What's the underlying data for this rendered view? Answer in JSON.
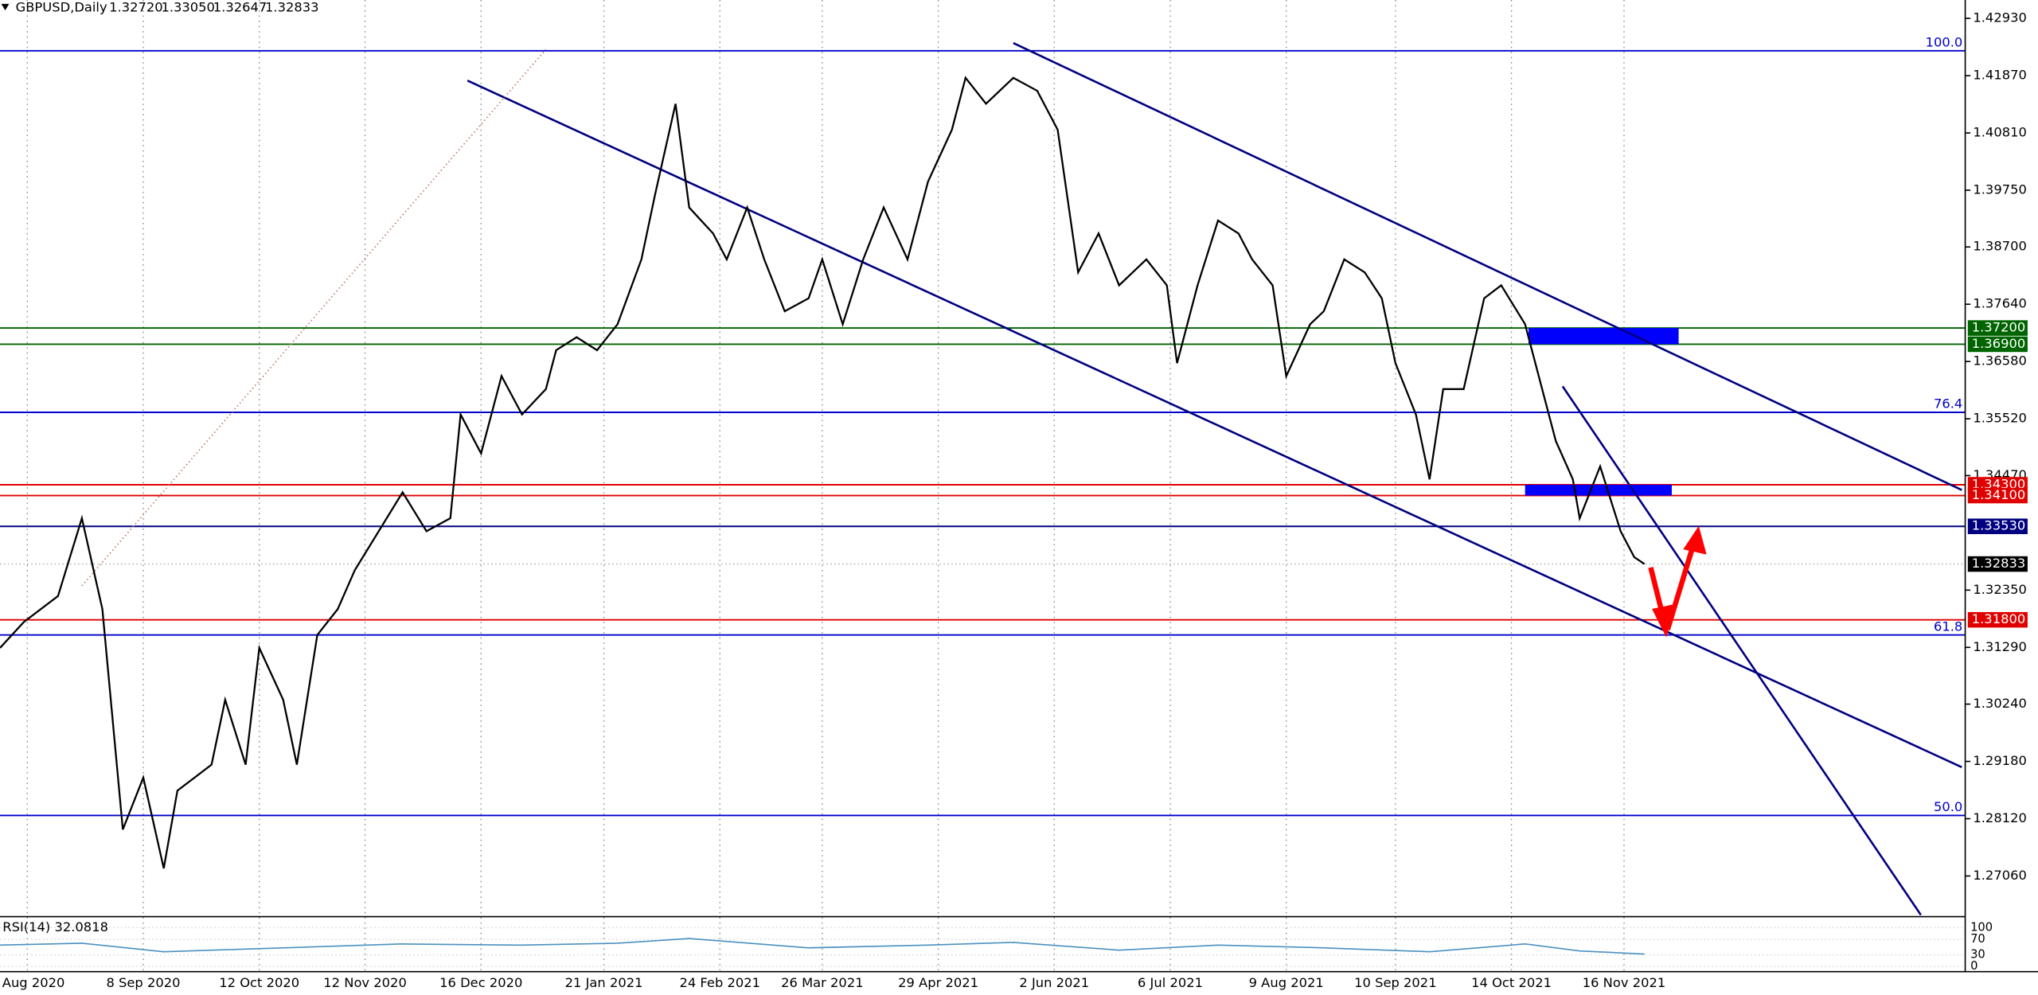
{
  "chart_data": {
    "type": "line",
    "title": "GBPUSD,Daily",
    "ohlc": [
      {
        "value": 1.3272,
        "label": "1.32720"
      },
      {
        "value": 1.3305,
        "label": "1.33050"
      },
      {
        "value": 1.32647,
        "label": "1.32647"
      },
      {
        "value": 1.32833,
        "label": "1.32833"
      }
    ],
    "x": [
      "2020-07-28",
      "2020-08-04",
      "2020-08-14",
      "2020-08-21",
      "2020-08-27",
      "2020-09-02",
      "2020-09-08",
      "2020-09-14",
      "2020-09-18",
      "2020-09-28",
      "2020-10-02",
      "2020-10-08",
      "2020-10-12",
      "2020-10-19",
      "2020-10-23",
      "2020-10-29",
      "2020-11-04",
      "2020-11-09",
      "2020-11-16",
      "2020-11-23",
      "2020-11-30",
      "2020-12-07",
      "2020-12-10",
      "2020-12-16",
      "2020-12-22",
      "2020-12-28",
      "2021-01-04",
      "2021-01-07",
      "2021-01-13",
      "2021-01-19",
      "2021-01-25",
      "2021-02-01",
      "2021-02-05",
      "2021-02-11",
      "2021-02-15",
      "2021-02-22",
      "2021-02-26",
      "2021-03-04",
      "2021-03-09",
      "2021-03-15",
      "2021-03-22",
      "2021-03-26",
      "2021-04-01",
      "2021-04-07",
      "2021-04-13",
      "2021-04-20",
      "2021-04-26",
      "2021-05-03",
      "2021-05-07",
      "2021-05-13",
      "2021-05-21",
      "2021-05-28",
      "2021-06-03",
      "2021-06-09",
      "2021-06-15",
      "2021-06-21",
      "2021-06-29",
      "2021-07-05",
      "2021-07-08",
      "2021-07-14",
      "2021-07-20",
      "2021-07-26",
      "2021-07-30",
      "2021-08-05",
      "2021-08-09",
      "2021-08-16",
      "2021-08-20",
      "2021-08-26",
      "2021-09-01",
      "2021-09-06",
      "2021-09-10",
      "2021-09-16",
      "2021-09-20",
      "2021-09-24",
      "2021-09-30",
      "2021-10-06",
      "2021-10-11",
      "2021-10-18",
      "2021-10-21",
      "2021-10-27",
      "2021-11-01",
      "2021-11-03",
      "2021-11-09",
      "2021-11-15",
      "2021-11-19",
      "2021-11-22"
    ],
    "values": [
      1.3128,
      1.3176,
      1.3224,
      1.3368,
      1.32,
      1.2792,
      1.2888,
      1.272,
      1.2864,
      1.2912,
      1.3032,
      1.2912,
      1.3128,
      1.3032,
      1.2912,
      1.3152,
      1.32,
      1.3272,
      1.3344,
      1.3416,
      1.3344,
      1.3368,
      1.356,
      1.3488,
      1.3631,
      1.356,
      1.3607,
      1.3679,
      1.3703,
      1.3679,
      1.3727,
      1.3847,
      1.3967,
      1.4135,
      1.3943,
      1.3895,
      1.3847,
      1.3943,
      1.3847,
      1.3751,
      1.3775,
      1.3847,
      1.3727,
      1.3847,
      1.3943,
      1.3847,
      1.3991,
      1.4087,
      1.4183,
      1.4135,
      1.4183,
      1.4159,
      1.4087,
      1.3823,
      1.3895,
      1.3799,
      1.3847,
      1.3799,
      1.3655,
      1.3799,
      1.3919,
      1.3895,
      1.3847,
      1.3799,
      1.3631,
      1.3727,
      1.3751,
      1.3847,
      1.3823,
      1.3775,
      1.3655,
      1.356,
      1.344,
      1.3607,
      1.3607,
      1.3775,
      1.3799,
      1.3727,
      1.3655,
      1.3511,
      1.344,
      1.3368,
      1.3464,
      1.3344,
      1.3296,
      1.32833
    ],
    "color": "#000000",
    "xlim": [
      "2020-07-28",
      "2022-02-24"
    ],
    "ylim": [
      1.2632,
      1.4327
    ],
    "yticks": [
      {
        "value": 1.4293,
        "label": "1.42930"
      },
      {
        "value": 1.4187,
        "label": "1.41870"
      },
      {
        "value": 1.4081,
        "label": "1.40810"
      },
      {
        "value": 1.3975,
        "label": "1.39750"
      },
      {
        "value": 1.387,
        "label": "1.38700"
      },
      {
        "value": 1.3764,
        "label": "1.37640"
      },
      {
        "value": 1.3658,
        "label": "1.36580"
      },
      {
        "value": 1.3552,
        "label": "1.35520"
      },
      {
        "value": 1.3447,
        "label": "1.34470"
      },
      {
        "value": 1.3235,
        "label": "1.32350"
      },
      {
        "value": 1.3129,
        "label": "1.31290"
      },
      {
        "value": 1.3024,
        "label": "1.30240"
      },
      {
        "value": 1.2918,
        "label": "1.29180"
      },
      {
        "value": 1.2812,
        "label": "1.28120"
      },
      {
        "value": 1.2706,
        "label": "1.27060"
      }
    ],
    "xticks": [
      {
        "value": "2020-08-05",
        "label": "5 Aug 2020"
      },
      {
        "value": "2020-09-08",
        "label": "8 Sep 2020"
      },
      {
        "value": "2020-10-12",
        "label": "12 Oct 2020"
      },
      {
        "value": "2020-11-12",
        "label": "12 Nov 2020"
      },
      {
        "value": "2020-12-16",
        "label": "16 Dec 2020"
      },
      {
        "value": "2021-01-21",
        "label": "21 Jan 2021"
      },
      {
        "value": "2021-02-24",
        "label": "24 Feb 2021"
      },
      {
        "value": "2021-03-26",
        "label": "26 Mar 2021"
      },
      {
        "value": "2021-04-29",
        "label": "29 Apr 2021"
      },
      {
        "value": "2021-06-02",
        "label": "2 Jun 2021"
      },
      {
        "value": "2021-07-06",
        "label": "6 Jul 2021"
      },
      {
        "value": "2021-08-09",
        "label": "9 Aug 2021"
      },
      {
        "value": "2021-09-10",
        "label": "10 Sep 2021"
      },
      {
        "value": "2021-10-14",
        "label": "14 Oct 2021"
      },
      {
        "value": "2021-11-16",
        "label": "16 Nov 2021"
      }
    ],
    "grid": true,
    "levels": [
      {
        "value": 1.372,
        "label": "1.37200",
        "color": "#006400"
      },
      {
        "value": 1.369,
        "label": "1.36900",
        "color": "#006400"
      },
      {
        "value": 1.343,
        "label": "1.34300",
        "color": "#e00000"
      },
      {
        "value": 1.341,
        "label": "1.34100",
        "color": "#e00000"
      },
      {
        "value": 1.3353,
        "label": "1.33530",
        "color": "#000080"
      },
      {
        "value": 1.318,
        "label": "1.31800",
        "color": "#e00000"
      }
    ],
    "current": 1.32833,
    "fib_levels": [
      {
        "value": 1.4233,
        "label": "100.0"
      },
      {
        "value": 1.3564,
        "label": "76.4"
      },
      {
        "value": 1.3152,
        "label": "61.8"
      },
      {
        "value": 1.2818,
        "label": "50.0"
      }
    ],
    "fib_color": "#0000cc",
    "trendlines": [
      {
        "x": [
          "2020-12-12",
          "2022-02-23"
        ],
        "y": [
          1.41779,
          1.29073
        ],
        "color": "#000080"
      },
      {
        "x": [
          "2021-05-21",
          "2022-02-23"
        ],
        "y": [
          1.42474,
          1.34203
        ],
        "color": "#000080"
      },
      {
        "x": [
          "2021-10-29",
          "2022-02-11"
        ],
        "y": [
          1.36121,
          1.26339
        ],
        "color": "#000080"
      },
      {
        "x": [
          "2020-08-21",
          "2021-01-04"
        ],
        "y": [
          1.32429,
          1.42355
        ],
        "color": "#c08070"
      }
    ],
    "zones": [
      {
        "x": [
          "2021-10-19",
          "2021-12-02"
        ],
        "y": [
          1.372,
          1.369
        ],
        "color": "#0000ff"
      },
      {
        "x": [
          "2021-10-18",
          "2021-11-30"
        ],
        "y": [
          1.343,
          1.341
        ],
        "color": "#0000ff"
      }
    ],
    "rsi": {
      "title": "RSI(14) 32.0818",
      "x": [
        "2020-07-28",
        "2020-08-21",
        "2020-09-14",
        "2020-10-19",
        "2020-11-23",
        "2020-12-28",
        "2021-01-25",
        "2021-02-15",
        "2021-03-22",
        "2021-04-26",
        "2021-05-21",
        "2021-06-21",
        "2021-07-20",
        "2021-08-20",
        "2021-09-20",
        "2021-10-18",
        "2021-11-03",
        "2021-11-22"
      ],
      "values": [
        55,
        60,
        38,
        48,
        58,
        55,
        60,
        72,
        48,
        55,
        62,
        42,
        55,
        48,
        38,
        58,
        40,
        32.0818
      ],
      "color": "#4a90c0",
      "ylim": [
        0,
        100
      ],
      "yticks": [
        100,
        70,
        30,
        0
      ]
    }
  }
}
